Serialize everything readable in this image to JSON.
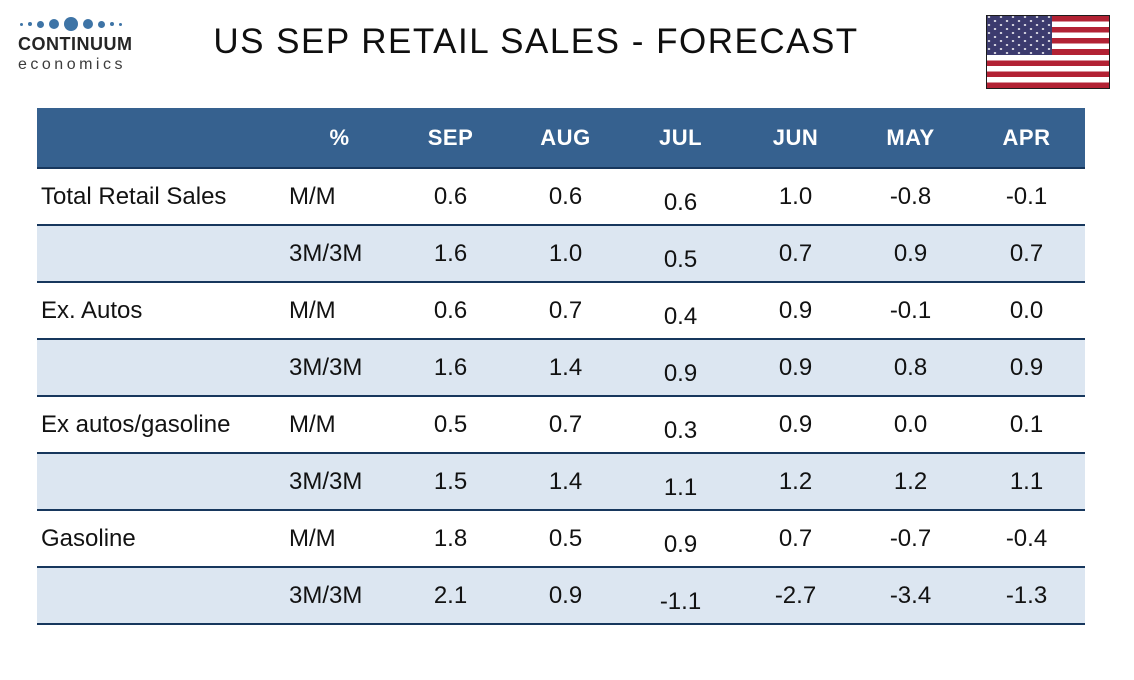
{
  "header": {
    "logo_brand": "CONTINUUM",
    "logo_sub": "economics",
    "title": "US SEP RETAIL SALES - FORECAST"
  },
  "colors": {
    "table_header_bg": "#36618f",
    "shaded_row_bg": "#dce6f1",
    "row_border": "#17375d",
    "logo_dot": "#3e74a6",
    "flag_red": "#b22234",
    "flag_blue": "#3c3b6e"
  },
  "table": {
    "columns": [
      "",
      "%",
      "SEP",
      "AUG",
      "JUL",
      "JUN",
      "MAY",
      "APR"
    ],
    "rows": [
      {
        "label": "Total Retail Sales",
        "measure": "M/M",
        "shaded": false,
        "values": [
          "0.6",
          "0.6",
          "0.6",
          "1.0",
          "-0.8",
          "-0.1"
        ]
      },
      {
        "label": "",
        "measure": "3M/3M",
        "shaded": true,
        "values": [
          "1.6",
          "1.0",
          "0.5",
          "0.7",
          "0.9",
          "0.7"
        ]
      },
      {
        "label": "Ex. Autos",
        "measure": "M/M",
        "shaded": false,
        "values": [
          "0.6",
          "0.7",
          "0.4",
          "0.9",
          "-0.1",
          "0.0"
        ]
      },
      {
        "label": "",
        "measure": "3M/3M",
        "shaded": true,
        "values": [
          "1.6",
          "1.4",
          "0.9",
          "0.9",
          "0.8",
          "0.9"
        ]
      },
      {
        "label": "Ex autos/gasoline",
        "measure": "M/M",
        "shaded": false,
        "values": [
          "0.5",
          "0.7",
          "0.3",
          "0.9",
          "0.0",
          "0.1"
        ]
      },
      {
        "label": "",
        "measure": "3M/3M",
        "shaded": true,
        "values": [
          "1.5",
          "1.4",
          "1.1",
          "1.2",
          "1.2",
          "1.1"
        ]
      },
      {
        "label": "Gasoline",
        "measure": "M/M",
        "shaded": false,
        "values": [
          "1.8",
          "0.5",
          "0.9",
          "0.7",
          "-0.7",
          "-0.4"
        ]
      },
      {
        "label": "",
        "measure": "3M/3M",
        "shaded": true,
        "values": [
          "2.1",
          "0.9",
          "-1.1",
          "-2.7",
          "-3.4",
          "-1.3"
        ]
      }
    ]
  },
  "chart_data": {
    "type": "table",
    "title": "US SEP RETAIL SALES - FORECAST",
    "columns": [
      "%",
      "SEP",
      "AUG",
      "JUL",
      "JUN",
      "MAY",
      "APR"
    ],
    "rows": [
      {
        "label": "Total Retail Sales",
        "measure": "M/M",
        "values": [
          0.6,
          0.6,
          0.6,
          1.0,
          -0.8,
          -0.1
        ]
      },
      {
        "label": "Total Retail Sales",
        "measure": "3M/3M",
        "values": [
          1.6,
          1.0,
          0.5,
          0.7,
          0.9,
          0.7
        ]
      },
      {
        "label": "Ex. Autos",
        "measure": "M/M",
        "values": [
          0.6,
          0.7,
          0.4,
          0.9,
          -0.1,
          0.0
        ]
      },
      {
        "label": "Ex. Autos",
        "measure": "3M/3M",
        "values": [
          1.6,
          1.4,
          0.9,
          0.9,
          0.8,
          0.9
        ]
      },
      {
        "label": "Ex autos/gasoline",
        "measure": "M/M",
        "values": [
          0.5,
          0.7,
          0.3,
          0.9,
          0.0,
          0.1
        ]
      },
      {
        "label": "Ex autos/gasoline",
        "measure": "3M/3M",
        "values": [
          1.5,
          1.4,
          1.1,
          1.2,
          1.2,
          1.1
        ]
      },
      {
        "label": "Gasoline",
        "measure": "M/M",
        "values": [
          1.8,
          0.5,
          0.9,
          0.7,
          -0.7,
          -0.4
        ]
      },
      {
        "label": "Gasoline",
        "measure": "3M/3M",
        "values": [
          2.1,
          0.9,
          -1.1,
          -2.7,
          -3.4,
          -1.3
        ]
      }
    ]
  }
}
